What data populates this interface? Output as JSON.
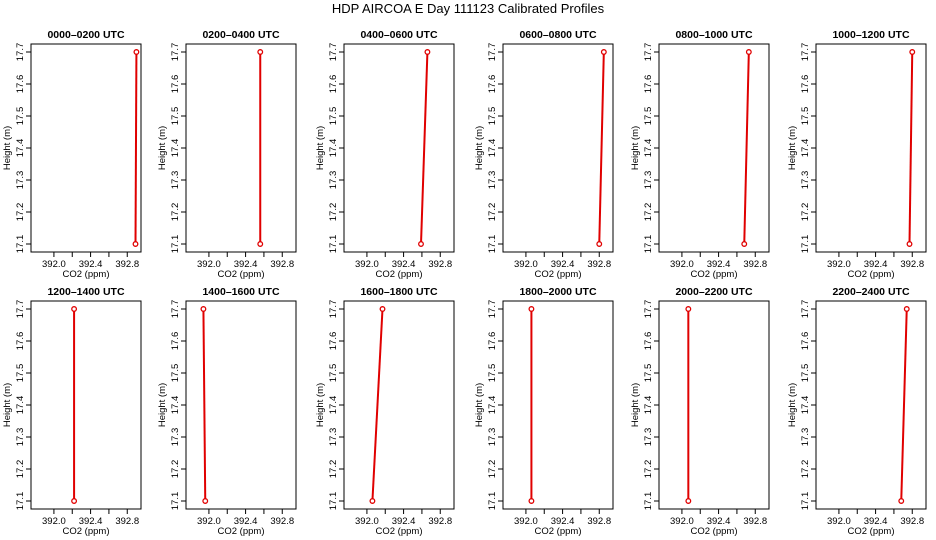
{
  "title": "HDP AIRCOA E  Day 111123  Calibrated Profiles",
  "colors": {
    "profile": "#e00000",
    "axis": "#000000",
    "background": "#ffffff"
  },
  "chart_data": [
    {
      "type": "line",
      "title": "0000–0200 UTC",
      "xlabel": "CO2 (ppm)",
      "ylabel": "Height (m)",
      "x_ticks": [
        "392.0",
        "392.4",
        "392.8"
      ],
      "y_ticks": [
        "17.1",
        "17.2",
        "17.3",
        "17.4",
        "17.5",
        "17.6",
        "17.7"
      ],
      "xlim": [
        391.75,
        392.95
      ],
      "ylim": [
        17.075,
        17.725
      ],
      "points": [
        {
          "x": 392.89,
          "y": 17.1
        },
        {
          "x": 392.9,
          "y": 17.7
        }
      ]
    },
    {
      "type": "line",
      "title": "0200–0400 UTC",
      "xlabel": "CO2 (ppm)",
      "ylabel": "Height (m)",
      "x_ticks": [
        "392.0",
        "392.4",
        "392.8"
      ],
      "y_ticks": [
        "17.1",
        "17.2",
        "17.3",
        "17.4",
        "17.5",
        "17.6",
        "17.7"
      ],
      "xlim": [
        391.75,
        392.95
      ],
      "ylim": [
        17.075,
        17.725
      ],
      "points": [
        {
          "x": 392.56,
          "y": 17.1
        },
        {
          "x": 392.56,
          "y": 17.7
        }
      ]
    },
    {
      "type": "line",
      "title": "0400–0600 UTC",
      "xlabel": "CO2 (ppm)",
      "ylabel": "Height (m)",
      "x_ticks": [
        "392.0",
        "392.4",
        "392.8"
      ],
      "y_ticks": [
        "17.1",
        "17.2",
        "17.3",
        "17.4",
        "17.5",
        "17.6",
        "17.7"
      ],
      "xlim": [
        391.75,
        392.95
      ],
      "ylim": [
        17.075,
        17.725
      ],
      "points": [
        {
          "x": 392.59,
          "y": 17.1
        },
        {
          "x": 392.66,
          "y": 17.7
        }
      ]
    },
    {
      "type": "line",
      "title": "0600–0800 UTC",
      "xlabel": "CO2 (ppm)",
      "ylabel": "Height (m)",
      "x_ticks": [
        "392.0",
        "392.4",
        "392.8"
      ],
      "y_ticks": [
        "17.1",
        "17.2",
        "17.3",
        "17.4",
        "17.5",
        "17.6",
        "17.7"
      ],
      "xlim": [
        391.75,
        392.95
      ],
      "ylim": [
        17.075,
        17.725
      ],
      "points": [
        {
          "x": 392.8,
          "y": 17.1
        },
        {
          "x": 392.85,
          "y": 17.7
        }
      ]
    },
    {
      "type": "line",
      "title": "0800–1000 UTC",
      "xlabel": "CO2 (ppm)",
      "ylabel": "Height (m)",
      "x_ticks": [
        "392.0",
        "392.4",
        "392.8"
      ],
      "y_ticks": [
        "17.1",
        "17.2",
        "17.3",
        "17.4",
        "17.5",
        "17.6",
        "17.7"
      ],
      "xlim": [
        391.75,
        392.95
      ],
      "ylim": [
        17.075,
        17.725
      ],
      "points": [
        {
          "x": 392.68,
          "y": 17.1
        },
        {
          "x": 392.73,
          "y": 17.7
        }
      ]
    },
    {
      "type": "line",
      "title": "1000–1200 UTC",
      "xlabel": "CO2 (ppm)",
      "ylabel": "Height (m)",
      "x_ticks": [
        "392.0",
        "392.4",
        "392.8"
      ],
      "y_ticks": [
        "17.1",
        "17.2",
        "17.3",
        "17.4",
        "17.5",
        "17.6",
        "17.7"
      ],
      "xlim": [
        391.75,
        392.95
      ],
      "ylim": [
        17.075,
        17.725
      ],
      "points": [
        {
          "x": 392.77,
          "y": 17.1
        },
        {
          "x": 392.8,
          "y": 17.7
        }
      ]
    },
    {
      "type": "line",
      "title": "1200–1400 UTC",
      "xlabel": "CO2 (ppm)",
      "ylabel": "Height (m)",
      "x_ticks": [
        "392.0",
        "392.4",
        "392.8"
      ],
      "y_ticks": [
        "17.1",
        "17.2",
        "17.3",
        "17.4",
        "17.5",
        "17.6",
        "17.7"
      ],
      "xlim": [
        391.75,
        392.95
      ],
      "ylim": [
        17.075,
        17.725
      ],
      "points": [
        {
          "x": 392.22,
          "y": 17.1
        },
        {
          "x": 392.22,
          "y": 17.7
        }
      ]
    },
    {
      "type": "line",
      "title": "1400–1600 UTC",
      "xlabel": "CO2 (ppm)",
      "ylabel": "Height (m)",
      "x_ticks": [
        "392.0",
        "392.4",
        "392.8"
      ],
      "y_ticks": [
        "17.1",
        "17.2",
        "17.3",
        "17.4",
        "17.5",
        "17.6",
        "17.7"
      ],
      "xlim": [
        391.75,
        392.95
      ],
      "ylim": [
        17.075,
        17.725
      ],
      "points": [
        {
          "x": 391.96,
          "y": 17.1
        },
        {
          "x": 391.94,
          "y": 17.7
        }
      ]
    },
    {
      "type": "line",
      "title": "1600–1800 UTC",
      "xlabel": "CO2 (ppm)",
      "ylabel": "Height (m)",
      "x_ticks": [
        "392.0",
        "392.4",
        "392.8"
      ],
      "y_ticks": [
        "17.1",
        "17.2",
        "17.3",
        "17.4",
        "17.5",
        "17.6",
        "17.7"
      ],
      "xlim": [
        391.75,
        392.95
      ],
      "ylim": [
        17.075,
        17.725
      ],
      "points": [
        {
          "x": 392.06,
          "y": 17.1
        },
        {
          "x": 392.17,
          "y": 17.7
        }
      ]
    },
    {
      "type": "line",
      "title": "1800–2000 UTC",
      "xlabel": "CO2 (ppm)",
      "ylabel": "Height (m)",
      "x_ticks": [
        "392.0",
        "392.4",
        "392.8"
      ],
      "y_ticks": [
        "17.1",
        "17.2",
        "17.3",
        "17.4",
        "17.5",
        "17.6",
        "17.7"
      ],
      "xlim": [
        391.75,
        392.95
      ],
      "ylim": [
        17.075,
        17.725
      ],
      "points": [
        {
          "x": 392.06,
          "y": 17.1
        },
        {
          "x": 392.06,
          "y": 17.7
        }
      ]
    },
    {
      "type": "line",
      "title": "2000–2200 UTC",
      "xlabel": "CO2 (ppm)",
      "ylabel": "Height (m)",
      "x_ticks": [
        "392.0",
        "392.4",
        "392.8"
      ],
      "y_ticks": [
        "17.1",
        "17.2",
        "17.3",
        "17.4",
        "17.5",
        "17.6",
        "17.7"
      ],
      "xlim": [
        391.75,
        392.95
      ],
      "ylim": [
        17.075,
        17.725
      ],
      "points": [
        {
          "x": 392.07,
          "y": 17.1
        },
        {
          "x": 392.07,
          "y": 17.7
        }
      ]
    },
    {
      "type": "line",
      "title": "2200–2400 UTC",
      "xlabel": "CO2 (ppm)",
      "ylabel": "Height (m)",
      "x_ticks": [
        "392.0",
        "392.4",
        "392.8"
      ],
      "y_ticks": [
        "17.1",
        "17.2",
        "17.3",
        "17.4",
        "17.5",
        "17.6",
        "17.7"
      ],
      "xlim": [
        391.75,
        392.95
      ],
      "ylim": [
        17.075,
        17.725
      ],
      "points": [
        {
          "x": 392.68,
          "y": 17.1
        },
        {
          "x": 392.74,
          "y": 17.7
        }
      ]
    }
  ]
}
